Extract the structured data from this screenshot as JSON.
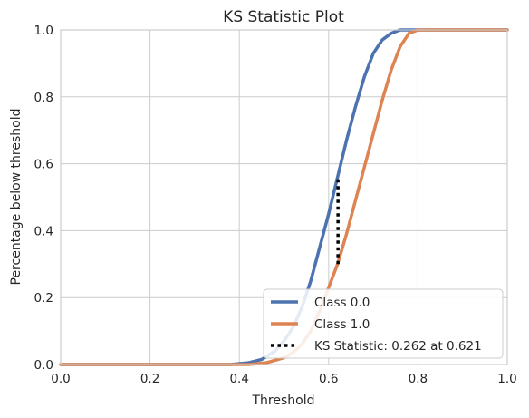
{
  "chart_data": {
    "type": "line",
    "title": "KS Statistic Plot",
    "xlabel": "Threshold",
    "ylabel": "Percentage below threshold",
    "xlim": [
      0.0,
      1.0
    ],
    "ylim": [
      0.0,
      1.0
    ],
    "grid": true,
    "legend_position": "lower-right",
    "x_ticks": [
      "0.0",
      "0.2",
      "0.4",
      "0.6",
      "0.8",
      "1.0"
    ],
    "y_ticks": [
      "0.0",
      "0.2",
      "0.4",
      "0.6",
      "0.8",
      "1.0"
    ],
    "series": [
      {
        "name": "Class 0.0",
        "color": "#4c72b0",
        "x": [
          0.0,
          0.38,
          0.42,
          0.45,
          0.48,
          0.5,
          0.52,
          0.54,
          0.56,
          0.58,
          0.6,
          0.62,
          0.64,
          0.66,
          0.68,
          0.7,
          0.72,
          0.74,
          0.76,
          1.0
        ],
        "y": [
          0.0,
          0.0,
          0.005,
          0.015,
          0.04,
          0.07,
          0.11,
          0.17,
          0.25,
          0.35,
          0.45,
          0.56,
          0.67,
          0.77,
          0.86,
          0.93,
          0.97,
          0.99,
          1.0,
          1.0
        ]
      },
      {
        "name": "Class 1.0",
        "color": "#dd8452",
        "x": [
          0.0,
          0.42,
          0.46,
          0.5,
          0.52,
          0.54,
          0.56,
          0.58,
          0.6,
          0.62,
          0.64,
          0.66,
          0.68,
          0.7,
          0.72,
          0.74,
          0.76,
          0.78,
          0.8,
          1.0
        ],
        "y": [
          0.0,
          0.0,
          0.005,
          0.02,
          0.035,
          0.06,
          0.1,
          0.16,
          0.23,
          0.3,
          0.39,
          0.49,
          0.59,
          0.69,
          0.79,
          0.88,
          0.95,
          0.99,
          1.0,
          1.0
        ]
      }
    ],
    "ks_statistic": {
      "label": "KS Statistic: 0.262 at 0.621",
      "value": 0.262,
      "threshold": 0.621,
      "y_low": 0.3,
      "y_high": 0.562,
      "color": "#000000"
    }
  }
}
